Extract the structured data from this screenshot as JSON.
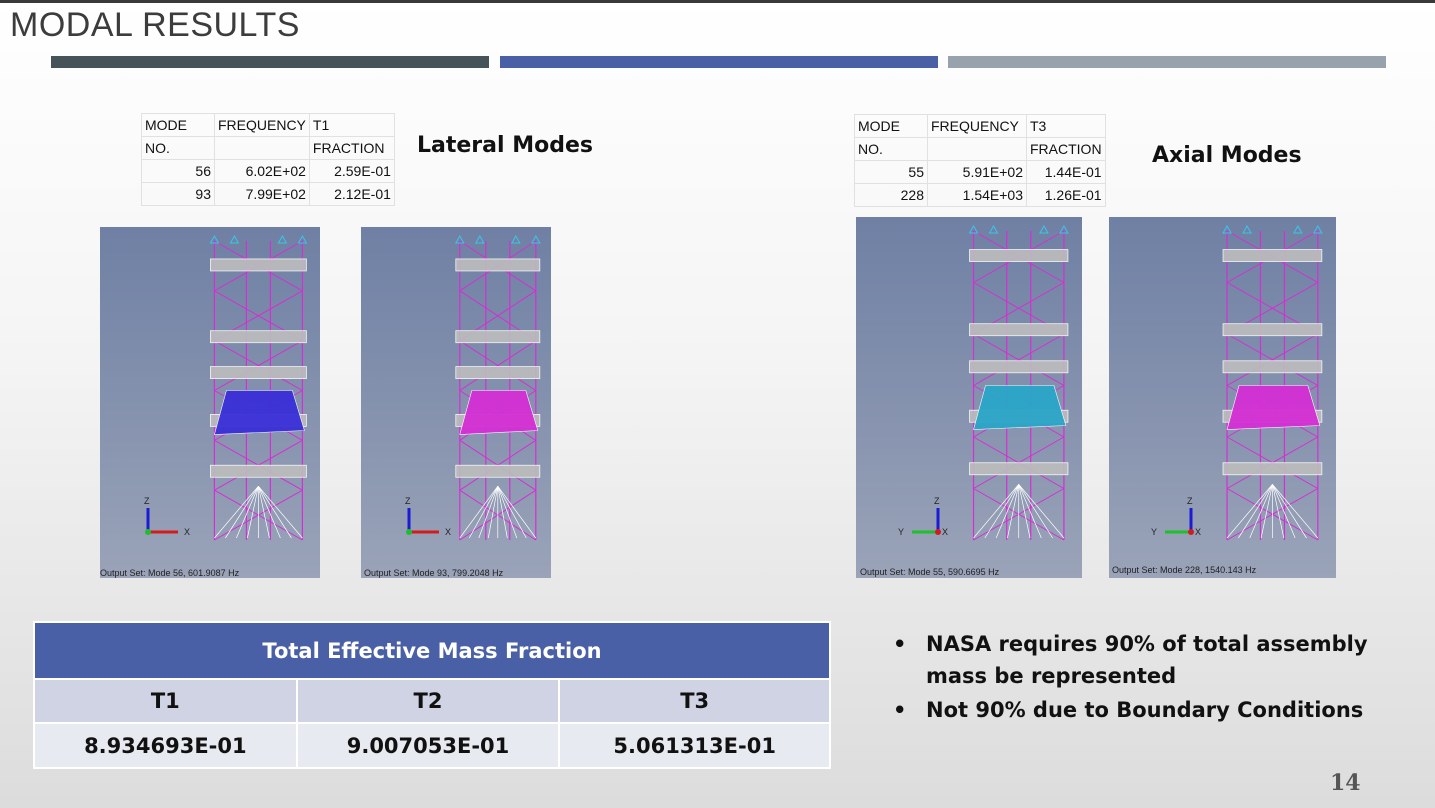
{
  "title": "MODAL RESULTS",
  "lateral": {
    "heading": "Lateral Modes",
    "header1": [
      "MODE",
      "FREQUENCY",
      "T1"
    ],
    "header2": [
      "NO.",
      "",
      "FRACTION"
    ],
    "rows": [
      [
        "56",
        "6.02E+02",
        "2.59E-01"
      ],
      [
        "93",
        "7.99E+02",
        "2.12E-01"
      ]
    ],
    "captions": [
      "Output Set: Mode 56, 601.9087 Hz",
      "Output Set: Mode 93, 799.2048 Hz"
    ]
  },
  "axial": {
    "heading": "Axial Modes",
    "header1": [
      "MODE",
      "FREQUENCY",
      "T3"
    ],
    "header2": [
      "NO.",
      "",
      "FRACTION"
    ],
    "rows": [
      [
        "55",
        "5.91E+02",
        "1.44E-01"
      ],
      [
        "228",
        "1.54E+03",
        "1.26E-01"
      ]
    ],
    "captions": [
      "Output Set: Mode 55, 590.6695 Hz",
      "Output Set: Mode 228, 1540.143 Hz"
    ]
  },
  "fem_axes": {
    "z": "Z",
    "x": "X",
    "y": "Y"
  },
  "mass_table": {
    "title": "Total Effective Mass Fraction",
    "columns": [
      "T1",
      "T2",
      "T3"
    ],
    "values": [
      "8.934693E-01",
      "9.007053E-01",
      "5.061313E-01"
    ]
  },
  "bullets": [
    "NASA requires 90% of total assembly mass be represented",
    "Not 90% due to Boundary Conditions"
  ],
  "bullet_symbol": "•",
  "page_number": "14",
  "colors": {
    "accent_blue": "#4a60a6",
    "bar_dark": "#46545a",
    "bar_gray": "#97a2ac",
    "truss_magenta": "#d42fd4"
  }
}
